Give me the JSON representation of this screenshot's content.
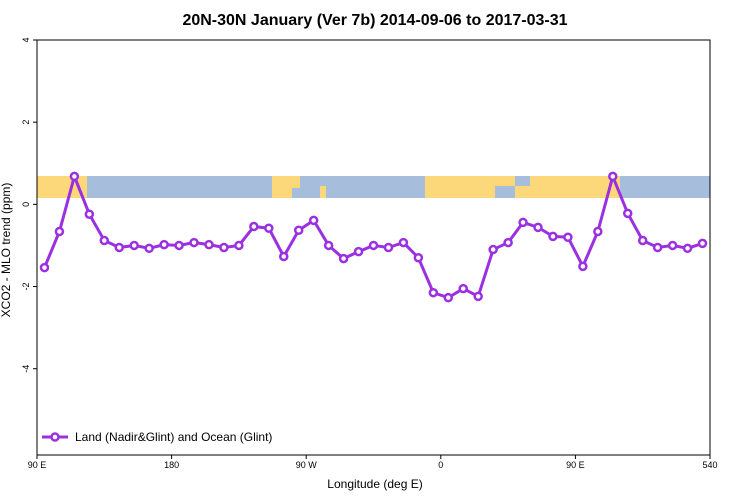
{
  "chart_data": {
    "type": "line",
    "title": "20N-30N January (Ver 7b)   2014-09-06 to 2017-03-31",
    "x_label": "Longitude (deg E)",
    "y_label": "XCO2 - MLO trend (ppm)",
    "x": [
      95,
      105,
      115,
      125,
      135,
      145,
      155,
      165,
      175,
      185,
      195,
      205,
      215,
      225,
      235,
      245,
      255,
      265,
      275,
      285,
      295,
      305,
      315,
      325,
      335,
      345,
      355,
      365,
      375,
      385,
      395,
      405,
      415,
      425,
      435,
      445,
      455,
      465,
      475,
      485,
      495,
      505,
      515,
      525,
      535
    ],
    "series": [
      {
        "name": "Land (Nadir&Glint) and Ocean (Glint)",
        "color": "#9b30e0",
        "values": [
          -1.54,
          -0.66,
          0.68,
          -0.24,
          -0.88,
          -1.05,
          -1.0,
          -1.07,
          -0.98,
          -1.0,
          -0.93,
          -0.98,
          -1.05,
          -1.0,
          -0.54,
          -0.58,
          -1.27,
          -0.63,
          -0.39,
          -1.0,
          -1.32,
          -1.15,
          -1.0,
          -1.05,
          -0.93,
          -1.3,
          -2.15,
          -2.27,
          -2.05,
          -2.24,
          -1.1,
          -0.93,
          -0.44,
          -0.56,
          -0.78,
          -0.8,
          -1.51,
          -0.66,
          0.68,
          -0.22,
          -0.88,
          -1.05,
          -1.0,
          -1.07,
          -0.95
        ]
      }
    ],
    "xlim": [
      90,
      540
    ],
    "xticks": [
      {
        "value": 90,
        "label": "90 E"
      },
      180,
      {
        "value": 270,
        "label": "90 W"
      },
      {
        "value": 360,
        "label": "0"
      },
      {
        "value": 450,
        "label": "90 E"
      },
      540
    ],
    "ylim": [
      -6.1,
      4
    ],
    "yticks": [
      4,
      2,
      0,
      -2,
      -4
    ],
    "legend": "bottom-left"
  }
}
